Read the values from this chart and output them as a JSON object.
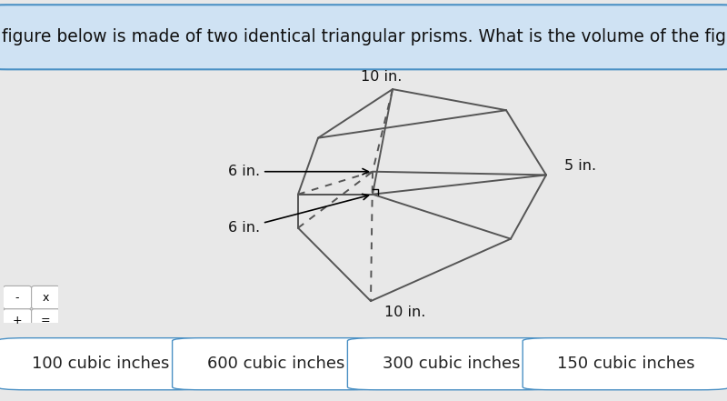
{
  "title": "The figure below is made of two identical triangular prisms. What is the volume of the figure?",
  "title_fontsize": 13.5,
  "title_bg": "#cfe2f3",
  "title_border": "#4a90c4",
  "main_bg": "#e8e8e8",
  "answer_bar_bg": "#4a90c4",
  "answer_btn_bg": "#ffffff",
  "answer_btn_border": "#4a90c4",
  "answer_choices": [
    "100 cubic inches",
    "600 cubic inches",
    "300 cubic inches",
    "150 cubic inches"
  ],
  "answer_fontsize": 13,
  "dim_labels": {
    "top_10": "10 in.",
    "left_top_6": "6 in.",
    "right_5": "5 in.",
    "left_bot_6": "6 in.",
    "bot_10": "10 in."
  },
  "prism_color": "#555555",
  "dashed_color": "#555555",
  "label_color": "#111111",
  "operators": [
    [
      "-",
      "x"
    ],
    [
      "+",
      "="
    ]
  ]
}
